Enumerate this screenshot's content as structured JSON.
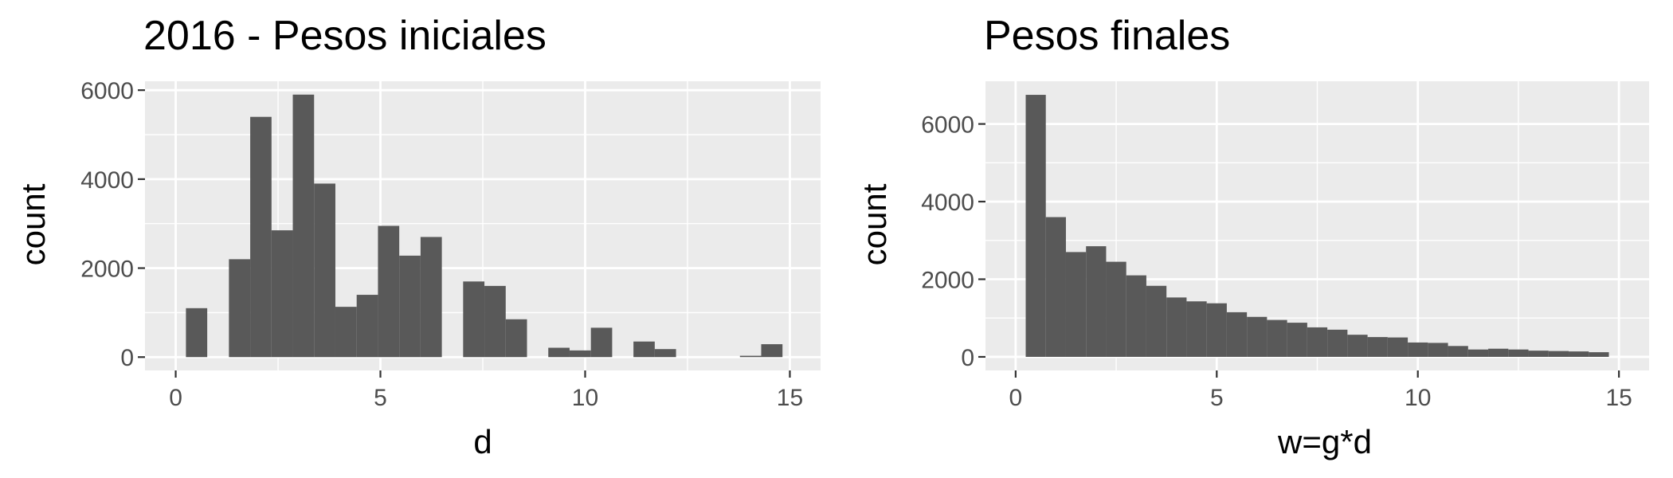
{
  "colors": {
    "panel_background": "#ebebeb",
    "grid_line": "#ffffff",
    "bar_fill": "#595959",
    "tick_text": "#4d4d4d",
    "title_text": "#000000"
  },
  "chart_data": [
    {
      "type": "bar",
      "title": "2016 - Pesos iniciales",
      "xlabel": "d",
      "ylabel": "count",
      "xlim": [
        -0.75,
        15.75
      ],
      "ylim": [
        -300,
        6200
      ],
      "x_ticks": [
        0,
        5,
        10,
        15
      ],
      "x_tick_labels": [
        "0",
        "5",
        "10",
        "15"
      ],
      "y_ticks": [
        0,
        2000,
        4000,
        6000
      ],
      "y_tick_labels": [
        "0",
        "2000",
        "4000",
        "6000"
      ],
      "grid": true,
      "bin_width": 0.52,
      "bins": [
        {
          "x0": 0.25,
          "count": 1100
        },
        {
          "x0": 1.3,
          "count": 2200
        },
        {
          "x0": 1.82,
          "count": 5400
        },
        {
          "x0": 2.34,
          "count": 2850
        },
        {
          "x0": 2.86,
          "count": 5900
        },
        {
          "x0": 3.38,
          "count": 3900
        },
        {
          "x0": 3.9,
          "count": 1130
        },
        {
          "x0": 4.42,
          "count": 1400
        },
        {
          "x0": 4.94,
          "count": 2950
        },
        {
          "x0": 5.46,
          "count": 2280
        },
        {
          "x0": 5.98,
          "count": 2700
        },
        {
          "x0": 7.02,
          "count": 1700
        },
        {
          "x0": 7.54,
          "count": 1600
        },
        {
          "x0": 8.06,
          "count": 850
        },
        {
          "x0": 9.1,
          "count": 210
        },
        {
          "x0": 9.62,
          "count": 150
        },
        {
          "x0": 10.14,
          "count": 660
        },
        {
          "x0": 11.18,
          "count": 350
        },
        {
          "x0": 11.7,
          "count": 180
        },
        {
          "x0": 13.78,
          "count": 30
        },
        {
          "x0": 14.3,
          "count": 290
        }
      ]
    },
    {
      "type": "bar",
      "title": "Pesos finales",
      "xlabel": "w=g*d",
      "ylabel": "count",
      "xlim": [
        -0.75,
        15.75
      ],
      "ylim": [
        -350,
        7100
      ],
      "x_ticks": [
        0,
        5,
        10,
        15
      ],
      "x_tick_labels": [
        "0",
        "5",
        "10",
        "15"
      ],
      "y_ticks": [
        0,
        2000,
        4000,
        6000
      ],
      "y_tick_labels": [
        "0",
        "2000",
        "4000",
        "6000"
      ],
      "grid": true,
      "bin_width": 0.5,
      "bins": [
        {
          "x0": 0.25,
          "count": 6750
        },
        {
          "x0": 0.75,
          "count": 3600
        },
        {
          "x0": 1.25,
          "count": 2700
        },
        {
          "x0": 1.75,
          "count": 2850
        },
        {
          "x0": 2.25,
          "count": 2450
        },
        {
          "x0": 2.75,
          "count": 2100
        },
        {
          "x0": 3.25,
          "count": 1830
        },
        {
          "x0": 3.75,
          "count": 1530
        },
        {
          "x0": 4.25,
          "count": 1430
        },
        {
          "x0": 4.75,
          "count": 1380
        },
        {
          "x0": 5.25,
          "count": 1150
        },
        {
          "x0": 5.75,
          "count": 1030
        },
        {
          "x0": 6.25,
          "count": 950
        },
        {
          "x0": 6.75,
          "count": 880
        },
        {
          "x0": 7.25,
          "count": 760
        },
        {
          "x0": 7.75,
          "count": 700
        },
        {
          "x0": 8.25,
          "count": 570
        },
        {
          "x0": 8.75,
          "count": 510
        },
        {
          "x0": 9.25,
          "count": 500
        },
        {
          "x0": 9.75,
          "count": 370
        },
        {
          "x0": 10.25,
          "count": 360
        },
        {
          "x0": 10.75,
          "count": 280
        },
        {
          "x0": 11.25,
          "count": 190
        },
        {
          "x0": 11.75,
          "count": 210
        },
        {
          "x0": 12.25,
          "count": 190
        },
        {
          "x0": 12.75,
          "count": 160
        },
        {
          "x0": 13.25,
          "count": 150
        },
        {
          "x0": 13.75,
          "count": 140
        },
        {
          "x0": 14.25,
          "count": 120
        }
      ]
    }
  ]
}
